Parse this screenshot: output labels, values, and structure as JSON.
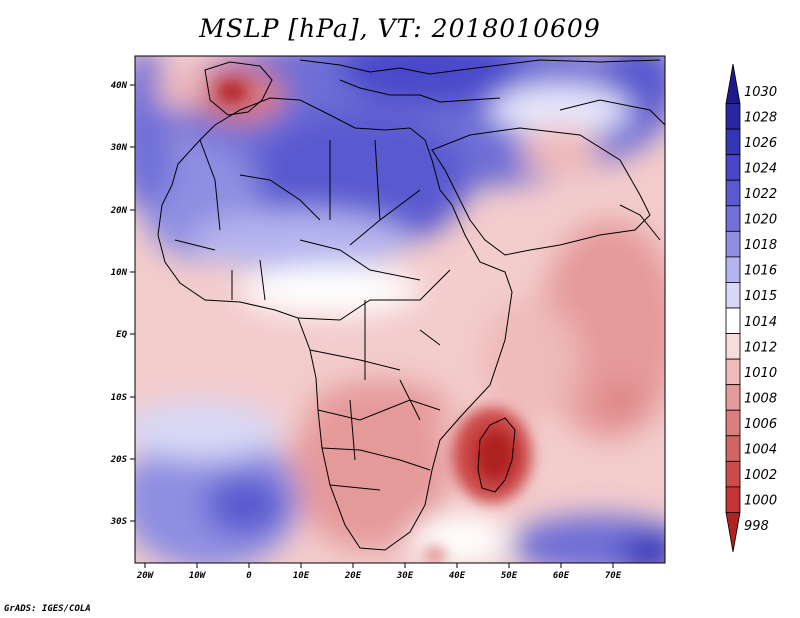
{
  "title": "MSLP [hPa], VT: 2018010609",
  "credit": "GrADS: IGES/COLA",
  "x_ticks": [
    "20W",
    "10W",
    "0",
    "10E",
    "20E",
    "30E",
    "40E",
    "50E",
    "60E",
    "70E"
  ],
  "y_ticks": [
    "40N",
    "30N",
    "20N",
    "10N",
    "EQ",
    "10S",
    "20S",
    "30S"
  ],
  "colorbar": [
    {
      "label": "1030",
      "color": "#1b1b8c"
    },
    {
      "label": "1028",
      "color": "#2727a3"
    },
    {
      "label": "1026",
      "color": "#3535b8"
    },
    {
      "label": "1024",
      "color": "#4646c6"
    },
    {
      "label": "1022",
      "color": "#5a5ad0"
    },
    {
      "label": "1020",
      "color": "#7070d8"
    },
    {
      "label": "1018",
      "color": "#8e8ee2"
    },
    {
      "label": "1016",
      "color": "#b4b4ee"
    },
    {
      "label": "1015",
      "color": "#d8d8f6"
    },
    {
      "label": "1014",
      "color": "#ffffff"
    },
    {
      "label": "1012",
      "color": "#f8dcdc"
    },
    {
      "label": "1010",
      "color": "#efbaba"
    },
    {
      "label": "1008",
      "color": "#e59a9a"
    },
    {
      "label": "1006",
      "color": "#db7e7e"
    },
    {
      "label": "1004",
      "color": "#d46464"
    },
    {
      "label": "1002",
      "color": "#cd4a4a"
    },
    {
      "label": "1000",
      "color": "#c43434"
    },
    {
      "label": "998",
      "color": "#b02222"
    }
  ]
}
